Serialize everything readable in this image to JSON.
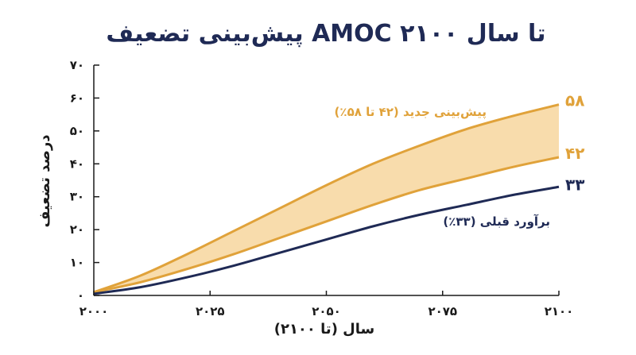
{
  "chart_data": {
    "type": "area",
    "title": "پیش‌بینی تضعیف AMOC تا سال ۲۱۰۰",
    "xlabel": "سال (تا ۲۱۰۰)",
    "ylabel": "درصد تضعیف",
    "xlim": [
      2000,
      2100
    ],
    "ylim": [
      0,
      70
    ],
    "x_ticks": [
      2000,
      2025,
      2050,
      2075,
      2100
    ],
    "x_tick_labels": [
      "۲۰۰۰",
      "۲۰۲۵",
      "۲۰۵۰",
      "۲۰۷۵",
      "۲۱۰۰"
    ],
    "y_ticks": [
      0,
      10,
      20,
      30,
      40,
      50,
      60,
      70
    ],
    "y_tick_labels": [
      "۰",
      "۱۰",
      "۲۰",
      "۳۰",
      "۴۰",
      "۵۰",
      "۶۰",
      "۷۰"
    ],
    "x": [
      2000,
      2010,
      2020,
      2030,
      2040,
      2050,
      2060,
      2070,
      2080,
      2090,
      2100
    ],
    "band": {
      "name": "پیش‌بینی جدید (۴۲ تا ۵۸٪)",
      "color": "#e0a23a",
      "fill": "#f8dcac",
      "upper": [
        1,
        6,
        12.5,
        19.5,
        26.5,
        33.5,
        40,
        45.5,
        50.5,
        54.5,
        58
      ],
      "lower": [
        1,
        4,
        8,
        12.5,
        17.5,
        22.5,
        27.5,
        32,
        35.5,
        39,
        42
      ]
    },
    "series": [
      {
        "name": "برآورد قبلی (۳۳٪)",
        "color": "#1f2a55",
        "values": [
          0.5,
          2.5,
          5.5,
          9,
          13,
          17,
          21,
          24.5,
          27.5,
          30.5,
          33
        ]
      }
    ],
    "end_labels": {
      "upper": "۵۸",
      "lower": "۴۲",
      "previous": "۳۳"
    },
    "axis_color": "#1a1a1a"
  }
}
